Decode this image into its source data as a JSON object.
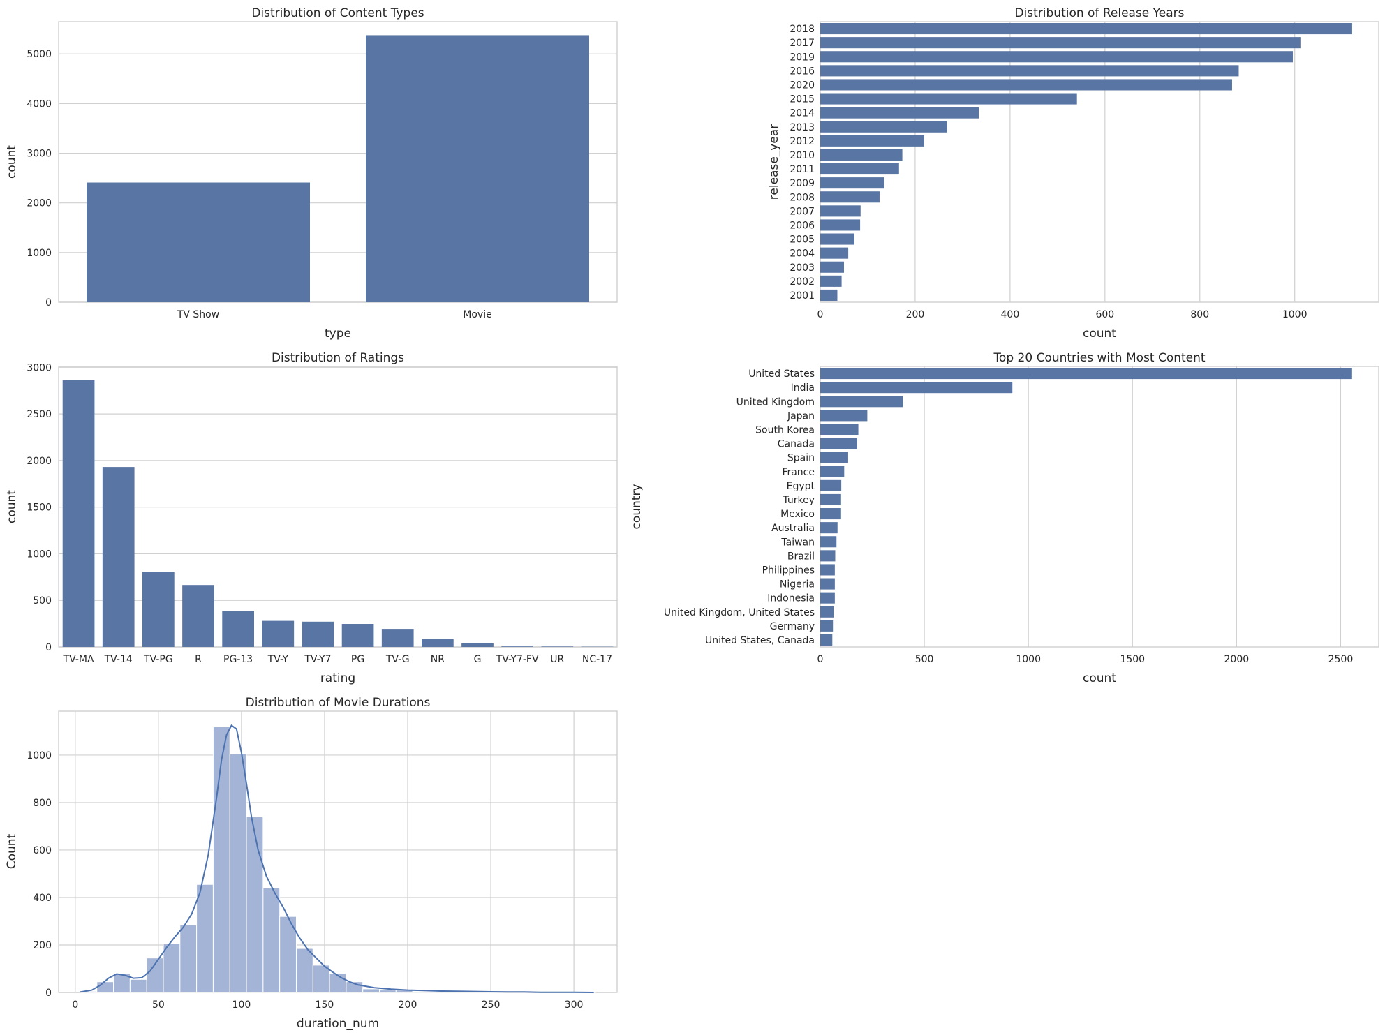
{
  "chart_data": [
    {
      "type": "bar",
      "title": "Distribution of Content Types",
      "xlabel": "type",
      "ylabel": "count",
      "categories": [
        "TV Show",
        "Movie"
      ],
      "values": [
        2410,
        5377
      ],
      "ylim": [
        0,
        5650
      ],
      "yticks": [
        0,
        1000,
        2000,
        3000,
        4000,
        5000
      ],
      "grid": true,
      "color": "#5975a4"
    },
    {
      "type": "bar",
      "orientation": "horizontal",
      "title": "Distribution of Release Years",
      "xlabel": "count",
      "ylabel": "release_year",
      "categories": [
        "2018",
        "2017",
        "2019",
        "2016",
        "2020",
        "2015",
        "2014",
        "2013",
        "2012",
        "2010",
        "2011",
        "2009",
        "2008",
        "2007",
        "2006",
        "2005",
        "2004",
        "2003",
        "2002",
        "2001"
      ],
      "values": [
        1121,
        1012,
        996,
        882,
        868,
        541,
        334,
        267,
        219,
        173,
        166,
        135,
        125,
        85,
        84,
        72,
        59,
        50,
        45,
        36
      ],
      "xlim": [
        0,
        1177
      ],
      "xticks": [
        0,
        200,
        400,
        600,
        800,
        1000
      ],
      "grid": true,
      "color": "#5975a4"
    },
    {
      "type": "bar",
      "title": "Distribution of Ratings",
      "xlabel": "rating",
      "ylabel": "count",
      "categories": [
        "TV-MA",
        "TV-14",
        "TV-PG",
        "R",
        "PG-13",
        "TV-Y",
        "TV-Y7",
        "PG",
        "TV-G",
        "NR",
        "G",
        "TV-Y7-FV",
        "UR",
        "NC-17"
      ],
      "values": [
        2863,
        1931,
        806,
        665,
        386,
        280,
        271,
        247,
        194,
        84,
        39,
        6,
        5,
        3
      ],
      "ylim": [
        0,
        3010
      ],
      "yticks": [
        0,
        500,
        1000,
        1500,
        2000,
        2500,
        3000
      ],
      "grid": true,
      "color": "#5975a4"
    },
    {
      "type": "bar",
      "orientation": "horizontal",
      "title": "Top 20 Countries with Most Content",
      "xlabel": "count",
      "ylabel": "country",
      "categories": [
        "United States",
        "India",
        "United Kingdom",
        "Japan",
        "South Korea",
        "Canada",
        "Spain",
        "France",
        "Egypt",
        "Turkey",
        "Mexico",
        "Australia",
        "Taiwan",
        "Brazil",
        "Philippines",
        "Nigeria",
        "Indonesia",
        "United Kingdom, United States",
        "Germany",
        "United States, Canada"
      ],
      "values": [
        2555,
        923,
        397,
        226,
        183,
        177,
        134,
        115,
        101,
        100,
        100,
        83,
        78,
        72,
        70,
        70,
        70,
        64,
        61,
        58
      ],
      "xlim": [
        0,
        2683
      ],
      "xticks": [
        0,
        500,
        1000,
        1500,
        2000,
        2500
      ],
      "grid": true,
      "color": "#5975a4"
    },
    {
      "type": "histogram",
      "title": "Distribution of Movie Durations",
      "xlabel": "duration_num",
      "ylabel": "Count",
      "xlim": [
        -10,
        326
      ],
      "ylim": [
        0,
        1185
      ],
      "xticks": [
        0,
        50,
        100,
        150,
        200,
        250,
        300
      ],
      "yticks": [
        0,
        200,
        400,
        600,
        800,
        1000
      ],
      "bin_width": 10,
      "bin_start": 3,
      "counts": [
        5,
        45,
        80,
        55,
        145,
        205,
        285,
        455,
        1120,
        1005,
        740,
        440,
        320,
        185,
        115,
        80,
        45,
        15,
        10,
        10,
        3,
        3,
        3,
        2,
        2,
        2,
        1,
        1,
        1,
        1,
        1
      ],
      "kde": {
        "x": [
          3,
          10,
          15,
          20,
          25,
          30,
          35,
          40,
          45,
          50,
          55,
          60,
          65,
          70,
          75,
          80,
          85,
          88,
          91,
          94,
          97,
          100,
          103,
          106,
          110,
          115,
          120,
          125,
          130,
          135,
          140,
          145,
          150,
          155,
          160,
          165,
          170,
          180,
          190,
          200,
          210,
          220,
          230,
          240,
          250,
          260,
          270,
          280,
          290,
          300,
          312
        ],
        "y": [
          2,
          10,
          30,
          60,
          78,
          72,
          60,
          62,
          90,
          140,
          190,
          235,
          275,
          330,
          420,
          580,
          820,
          980,
          1085,
          1125,
          1110,
          1010,
          880,
          740,
          600,
          490,
          420,
          360,
          290,
          230,
          180,
          145,
          110,
          85,
          62,
          45,
          32,
          20,
          14,
          10,
          8,
          6,
          5,
          4,
          3,
          2,
          2,
          1,
          1,
          1,
          0
        ]
      },
      "grid": true,
      "bar_color": "#a3b4d6",
      "line_color": "#4c72b0"
    }
  ]
}
